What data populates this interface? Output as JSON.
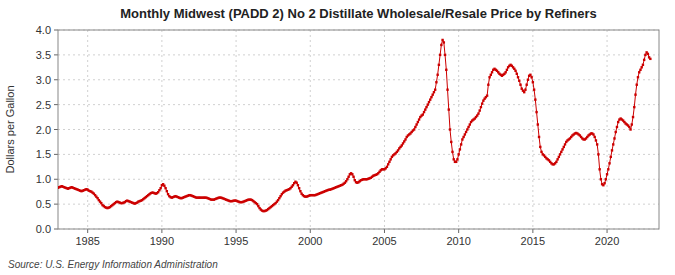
{
  "chart_data": {
    "type": "line",
    "title": "Monthly Midwest (PADD 2) No 2 Distillate Wholesale/Resale Price by Refiners",
    "y_label": "Dollars per Gallon",
    "annotation": "Source: U.S. Energy Information Administration",
    "color": "#cc0000",
    "marker": "square",
    "grid": true,
    "xlim": [
      1983.0,
      2023.5
    ],
    "ylim": [
      0.0,
      4.0
    ],
    "xticks": [
      1985,
      1990,
      1995,
      2000,
      2005,
      2010,
      2015,
      2020
    ],
    "yticks": [
      {
        "value": 0.0,
        "label": "0.0"
      },
      0.5,
      {
        "value": 1.0,
        "label": "1.0"
      },
      1.5,
      {
        "value": 2.0,
        "label": "2.0"
      },
      2.5,
      {
        "value": 3.0,
        "label": "3.0"
      },
      3.5,
      {
        "value": 4.0,
        "label": "4.0"
      }
    ],
    "x": [
      1983,
      1983.0833333333333,
      1983.1666666666667,
      1983.25,
      1983.3333333333333,
      1983.4166666666667,
      1983.5,
      1983.5833333333333,
      1983.6666666666667,
      1983.75,
      1983.8333333333333,
      1983.9166666666667,
      1984,
      1984.0833333333333,
      1984.1666666666667,
      1984.25,
      1984.3333333333333,
      1984.4166666666667,
      1984.5,
      1984.5833333333333,
      1984.6666666666667,
      1984.75,
      1984.8333333333333,
      1984.9166666666667,
      1985,
      1985.0833333333333,
      1985.1666666666667,
      1985.25,
      1985.3333333333333,
      1985.4166666666667,
      1985.5,
      1985.5833333333333,
      1985.6666666666667,
      1985.75,
      1985.8333333333333,
      1985.9166666666667,
      1986,
      1986.0833333333333,
      1986.1666666666667,
      1986.25,
      1986.3333333333333,
      1986.4166666666667,
      1986.5,
      1986.5833333333333,
      1986.6666666666667,
      1986.75,
      1986.8333333333333,
      1986.9166666666667,
      1987,
      1987.0833333333333,
      1987.1666666666667,
      1987.25,
      1987.3333333333333,
      1987.4166666666667,
      1987.5,
      1987.5833333333333,
      1987.6666666666667,
      1987.75,
      1987.8333333333333,
      1987.9166666666667,
      1988,
      1988.0833333333333,
      1988.1666666666667,
      1988.25,
      1988.3333333333333,
      1988.4166666666667,
      1988.5,
      1988.5833333333333,
      1988.6666666666667,
      1988.75,
      1988.8333333333333,
      1988.9166666666667,
      1989,
      1989.0833333333333,
      1989.1666666666667,
      1989.25,
      1989.3333333333333,
      1989.4166666666667,
      1989.5,
      1989.5833333333333,
      1989.6666666666667,
      1989.75,
      1989.8333333333333,
      1989.9166666666667,
      1990,
      1990.0833333333333,
      1990.1666666666667,
      1990.25,
      1990.3333333333333,
      1990.4166666666667,
      1990.5,
      1990.5833333333333,
      1990.6666666666667,
      1990.75,
      1990.8333333333333,
      1990.9166666666667,
      1991,
      1991.0833333333333,
      1991.1666666666667,
      1991.25,
      1991.3333333333333,
      1991.4166666666667,
      1991.5,
      1991.5833333333333,
      1991.6666666666667,
      1991.75,
      1991.8333333333333,
      1991.9166666666667,
      1992,
      1992.0833333333333,
      1992.1666666666667,
      1992.25,
      1992.3333333333333,
      1992.4166666666667,
      1992.5,
      1992.5833333333333,
      1992.6666666666667,
      1992.75,
      1992.8333333333333,
      1992.9166666666667,
      1993,
      1993.0833333333333,
      1993.1666666666667,
      1993.25,
      1993.3333333333333,
      1993.4166666666667,
      1993.5,
      1993.5833333333333,
      1993.6666666666667,
      1993.75,
      1993.8333333333333,
      1993.9166666666667,
      1994,
      1994.0833333333333,
      1994.1666666666667,
      1994.25,
      1994.3333333333333,
      1994.4166666666667,
      1994.5,
      1994.5833333333333,
      1994.6666666666667,
      1994.75,
      1994.8333333333333,
      1994.9166666666667,
      1995,
      1995.0833333333333,
      1995.1666666666667,
      1995.25,
      1995.3333333333333,
      1995.4166666666667,
      1995.5,
      1995.5833333333333,
      1995.6666666666667,
      1995.75,
      1995.8333333333333,
      1995.9166666666667,
      1996,
      1996.0833333333333,
      1996.1666666666667,
      1996.25,
      1996.3333333333333,
      1996.4166666666667,
      1996.5,
      1996.5833333333333,
      1996.6666666666667,
      1996.75,
      1996.8333333333333,
      1996.9166666666667,
      1997,
      1997.0833333333333,
      1997.1666666666667,
      1997.25,
      1997.3333333333333,
      1997.4166666666667,
      1997.5,
      1997.5833333333333,
      1997.6666666666667,
      1997.75,
      1997.8333333333333,
      1997.9166666666667,
      1998,
      1998.0833333333333,
      1998.1666666666667,
      1998.25,
      1998.3333333333333,
      1998.4166666666667,
      1998.5,
      1998.5833333333333,
      1998.6666666666667,
      1998.75,
      1998.8333333333333,
      1998.9166666666667,
      1999,
      1999.0833333333333,
      1999.1666666666667,
      1999.25,
      1999.3333333333333,
      1999.4166666666667,
      1999.5,
      1999.5833333333333,
      1999.6666666666667,
      1999.75,
      1999.8333333333333,
      1999.9166666666667,
      2000,
      2000.0833333333333,
      2000.1666666666667,
      2000.25,
      2000.3333333333333,
      2000.4166666666667,
      2000.5,
      2000.5833333333333,
      2000.6666666666667,
      2000.75,
      2000.8333333333333,
      2000.9166666666667,
      2001,
      2001.0833333333333,
      2001.1666666666667,
      2001.25,
      2001.3333333333333,
      2001.4166666666667,
      2001.5,
      2001.5833333333333,
      2001.6666666666667,
      2001.75,
      2001.8333333333333,
      2001.9166666666667,
      2002,
      2002.0833333333333,
      2002.1666666666667,
      2002.25,
      2002.3333333333333,
      2002.4166666666667,
      2002.5,
      2002.5833333333333,
      2002.6666666666667,
      2002.75,
      2002.8333333333333,
      2002.9166666666667,
      2003,
      2003.0833333333333,
      2003.1666666666667,
      2003.25,
      2003.3333333333333,
      2003.4166666666667,
      2003.5,
      2003.5833333333333,
      2003.6666666666667,
      2003.75,
      2003.8333333333333,
      2003.9166666666667,
      2004,
      2004.0833333333333,
      2004.1666666666667,
      2004.25,
      2004.3333333333333,
      2004.4166666666667,
      2004.5,
      2004.5833333333333,
      2004.6666666666667,
      2004.75,
      2004.8333333333333,
      2004.9166666666667,
      2005,
      2005.0833333333333,
      2005.1666666666667,
      2005.25,
      2005.3333333333333,
      2005.4166666666667,
      2005.5,
      2005.5833333333333,
      2005.6666666666667,
      2005.75,
      2005.8333333333333,
      2005.9166666666667,
      2006,
      2006.0833333333333,
      2006.1666666666667,
      2006.25,
      2006.3333333333333,
      2006.4166666666667,
      2006.5,
      2006.5833333333333,
      2006.6666666666667,
      2006.75,
      2006.8333333333333,
      2006.9166666666667,
      2007,
      2007.0833333333333,
      2007.1666666666667,
      2007.25,
      2007.3333333333333,
      2007.4166666666667,
      2007.5,
      2007.5833333333333,
      2007.6666666666667,
      2007.75,
      2007.8333333333333,
      2007.9166666666667,
      2008,
      2008.0833333333333,
      2008.1666666666667,
      2008.25,
      2008.3333333333333,
      2008.4166666666667,
      2008.5,
      2008.5833333333333,
      2008.6666666666667,
      2008.75,
      2008.8333333333333,
      2008.9166666666667,
      2009,
      2009.0833333333333,
      2009.1666666666667,
      2009.25,
      2009.3333333333333,
      2009.4166666666667,
      2009.5,
      2009.5833333333333,
      2009.6666666666667,
      2009.75,
      2009.8333333333333,
      2009.9166666666667,
      2010,
      2010.0833333333333,
      2010.1666666666667,
      2010.25,
      2010.3333333333333,
      2010.4166666666667,
      2010.5,
      2010.5833333333333,
      2010.6666666666667,
      2010.75,
      2010.8333333333333,
      2010.9166666666667,
      2011,
      2011.0833333333333,
      2011.1666666666667,
      2011.25,
      2011.3333333333333,
      2011.4166666666667,
      2011.5,
      2011.5833333333333,
      2011.6666666666667,
      2011.75,
      2011.8333333333333,
      2011.9166666666667,
      2012,
      2012.0833333333333,
      2012.1666666666667,
      2012.25,
      2012.3333333333333,
      2012.4166666666667,
      2012.5,
      2012.5833333333333,
      2012.6666666666667,
      2012.75,
      2012.8333333333333,
      2012.9166666666667,
      2013,
      2013.0833333333333,
      2013.1666666666667,
      2013.25,
      2013.3333333333333,
      2013.4166666666667,
      2013.5,
      2013.5833333333333,
      2013.6666666666667,
      2013.75,
      2013.8333333333333,
      2013.9166666666667,
      2014,
      2014.0833333333333,
      2014.1666666666667,
      2014.25,
      2014.3333333333333,
      2014.4166666666667,
      2014.5,
      2014.5833333333333,
      2014.6666666666667,
      2014.75,
      2014.8333333333333,
      2014.9166666666667,
      2015,
      2015.0833333333333,
      2015.1666666666667,
      2015.25,
      2015.3333333333333,
      2015.4166666666667,
      2015.5,
      2015.5833333333333,
      2015.6666666666667,
      2015.75,
      2015.8333333333333,
      2015.9166666666667,
      2016,
      2016.0833333333333,
      2016.1666666666667,
      2016.25,
      2016.3333333333333,
      2016.4166666666667,
      2016.5,
      2016.5833333333333,
      2016.6666666666667,
      2016.75,
      2016.8333333333333,
      2016.9166666666667,
      2017,
      2017.0833333333333,
      2017.1666666666667,
      2017.25,
      2017.3333333333333,
      2017.4166666666667,
      2017.5,
      2017.5833333333333,
      2017.6666666666667,
      2017.75,
      2017.8333333333333,
      2017.9166666666667,
      2018,
      2018.0833333333333,
      2018.1666666666667,
      2018.25,
      2018.3333333333333,
      2018.4166666666667,
      2018.5,
      2018.5833333333333,
      2018.6666666666667,
      2018.75,
      2018.8333333333333,
      2018.9166666666667,
      2019,
      2019.0833333333333,
      2019.1666666666667,
      2019.25,
      2019.3333333333333,
      2019.4166666666667,
      2019.5,
      2019.5833333333333,
      2019.6666666666667,
      2019.75,
      2019.8333333333333,
      2019.9166666666667,
      2020,
      2020.0833333333333,
      2020.1666666666667,
      2020.25,
      2020.3333333333333,
      2020.4166666666667,
      2020.5,
      2020.5833333333333,
      2020.6666666666667,
      2020.75,
      2020.8333333333333,
      2020.9166666666667,
      2021,
      2021.0833333333333,
      2021.1666666666667,
      2021.25,
      2021.3333333333333,
      2021.4166666666667,
      2021.5,
      2021.5833333333333,
      2021.6666666666667,
      2021.75,
      2021.8333333333333,
      2021.9166666666667,
      2022,
      2022.0833333333333,
      2022.1666666666667,
      2022.25,
      2022.3333333333333,
      2022.4166666666667,
      2022.5,
      2022.5833333333333,
      2022.6666666666667,
      2022.75,
      2022.8333333333333,
      2022.9166666666667
    ],
    "values": [
      0.83,
      0.84,
      0.85,
      0.86,
      0.85,
      0.84,
      0.83,
      0.82,
      0.81,
      0.82,
      0.83,
      0.84,
      0.83,
      0.82,
      0.81,
      0.8,
      0.79,
      0.78,
      0.77,
      0.76,
      0.77,
      0.78,
      0.79,
      0.8,
      0.79,
      0.77,
      0.76,
      0.75,
      0.73,
      0.71,
      0.68,
      0.65,
      0.62,
      0.58,
      0.55,
      0.52,
      0.48,
      0.46,
      0.44,
      0.43,
      0.42,
      0.43,
      0.44,
      0.46,
      0.48,
      0.5,
      0.52,
      0.54,
      0.55,
      0.54,
      0.53,
      0.52,
      0.52,
      0.53,
      0.54,
      0.56,
      0.57,
      0.56,
      0.55,
      0.54,
      0.53,
      0.52,
      0.51,
      0.52,
      0.53,
      0.55,
      0.56,
      0.57,
      0.58,
      0.6,
      0.62,
      0.64,
      0.66,
      0.68,
      0.7,
      0.72,
      0.73,
      0.73,
      0.72,
      0.71,
      0.72,
      0.74,
      0.78,
      0.82,
      0.88,
      0.9,
      0.87,
      0.82,
      0.76,
      0.7,
      0.66,
      0.64,
      0.63,
      0.64,
      0.65,
      0.66,
      0.65,
      0.64,
      0.63,
      0.62,
      0.62,
      0.63,
      0.64,
      0.65,
      0.66,
      0.67,
      0.68,
      0.68,
      0.67,
      0.66,
      0.65,
      0.64,
      0.63,
      0.63,
      0.63,
      0.63,
      0.63,
      0.63,
      0.63,
      0.63,
      0.63,
      0.62,
      0.61,
      0.6,
      0.59,
      0.59,
      0.59,
      0.6,
      0.61,
      0.62,
      0.63,
      0.63,
      0.63,
      0.62,
      0.61,
      0.6,
      0.59,
      0.58,
      0.57,
      0.56,
      0.56,
      0.56,
      0.57,
      0.57,
      0.57,
      0.56,
      0.55,
      0.54,
      0.54,
      0.54,
      0.55,
      0.56,
      0.57,
      0.58,
      0.59,
      0.59,
      0.59,
      0.58,
      0.56,
      0.54,
      0.52,
      0.5,
      0.46,
      0.42,
      0.39,
      0.37,
      0.36,
      0.36,
      0.37,
      0.38,
      0.4,
      0.42,
      0.44,
      0.46,
      0.48,
      0.5,
      0.52,
      0.55,
      0.58,
      0.62,
      0.66,
      0.7,
      0.73,
      0.75,
      0.77,
      0.78,
      0.79,
      0.8,
      0.82,
      0.85,
      0.88,
      0.92,
      0.95,
      0.93,
      0.88,
      0.82,
      0.76,
      0.71,
      0.68,
      0.66,
      0.65,
      0.65,
      0.66,
      0.67,
      0.68,
      0.68,
      0.68,
      0.68,
      0.68,
      0.69,
      0.7,
      0.71,
      0.72,
      0.73,
      0.74,
      0.75,
      0.76,
      0.77,
      0.78,
      0.79,
      0.79,
      0.8,
      0.81,
      0.82,
      0.83,
      0.84,
      0.85,
      0.86,
      0.87,
      0.88,
      0.89,
      0.91,
      0.93,
      0.96,
      1.0,
      1.05,
      1.1,
      1.12,
      1.1,
      1.05,
      0.98,
      0.94,
      0.93,
      0.94,
      0.96,
      0.98,
      0.99,
      1.0,
      1.0,
      1.0,
      1.0,
      1.01,
      1.02,
      1.03,
      1.05,
      1.07,
      1.08,
      1.09,
      1.1,
      1.12,
      1.15,
      1.18,
      1.2,
      1.2,
      1.2,
      1.22,
      1.25,
      1.3,
      1.35,
      1.4,
      1.45,
      1.48,
      1.5,
      1.52,
      1.55,
      1.58,
      1.62,
      1.65,
      1.68,
      1.72,
      1.76,
      1.8,
      1.85,
      1.88,
      1.9,
      1.92,
      1.95,
      1.98,
      2.0,
      2.05,
      2.1,
      2.15,
      2.2,
      2.25,
      2.28,
      2.3,
      2.35,
      2.4,
      2.45,
      2.5,
      2.55,
      2.6,
      2.65,
      2.7,
      2.75,
      2.8,
      2.95,
      3.1,
      3.3,
      3.5,
      3.7,
      3.8,
      3.75,
      3.5,
      3.2,
      2.8,
      2.4,
      2.0,
      1.75,
      1.55,
      1.4,
      1.35,
      1.35,
      1.4,
      1.5,
      1.6,
      1.7,
      1.8,
      1.85,
      1.9,
      1.95,
      2.0,
      2.05,
      2.1,
      2.15,
      2.18,
      2.2,
      2.22,
      2.25,
      2.28,
      2.32,
      2.38,
      2.45,
      2.52,
      2.58,
      2.62,
      2.65,
      2.68,
      2.9,
      3.05,
      3.1,
      3.15,
      3.2,
      3.22,
      3.2,
      3.18,
      3.15,
      3.12,
      3.1,
      3.08,
      3.1,
      3.12,
      3.15,
      3.2,
      3.25,
      3.28,
      3.3,
      3.28,
      3.25,
      3.22,
      3.18,
      3.12,
      3.05,
      2.98,
      2.9,
      2.82,
      2.78,
      2.75,
      2.8,
      2.9,
      3.0,
      3.08,
      3.1,
      3.05,
      2.95,
      2.8,
      2.6,
      2.35,
      2.1,
      1.85,
      1.65,
      1.55,
      1.5,
      1.48,
      1.45,
      1.42,
      1.4,
      1.38,
      1.35,
      1.32,
      1.3,
      1.3,
      1.32,
      1.35,
      1.4,
      1.45,
      1.5,
      1.55,
      1.6,
      1.65,
      1.7,
      1.75,
      1.78,
      1.8,
      1.82,
      1.85,
      1.88,
      1.9,
      1.92,
      1.93,
      1.92,
      1.9,
      1.88,
      1.85,
      1.82,
      1.8,
      1.8,
      1.82,
      1.85,
      1.88,
      1.9,
      1.92,
      1.92,
      1.9,
      1.85,
      1.78,
      1.7,
      1.5,
      1.2,
      1.0,
      0.9,
      0.88,
      0.92,
      1.0,
      1.1,
      1.2,
      1.32,
      1.45,
      1.58,
      1.7,
      1.82,
      1.95,
      2.05,
      2.15,
      2.2,
      2.22,
      2.2,
      2.18,
      2.15,
      2.12,
      2.1,
      2.08,
      2.05,
      2.0,
      2.1,
      2.25,
      2.45,
      2.7,
      2.9,
      3.05,
      3.15,
      3.2,
      3.25,
      3.3,
      3.4,
      3.5,
      3.55,
      3.52,
      3.45,
      3.42
    ]
  }
}
